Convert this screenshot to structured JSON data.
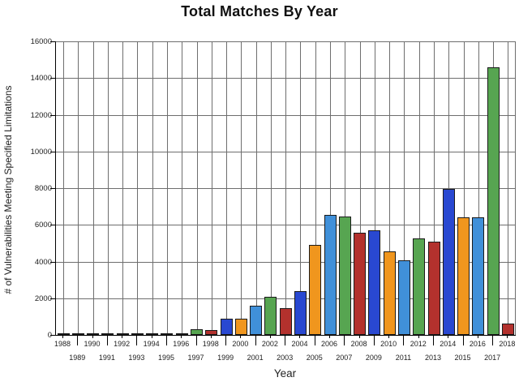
{
  "figure": {
    "title": "Total Matches By Year",
    "xlabel": "Year",
    "ylabel": "# of Vulnerabilities Meeting Specified Limitations"
  },
  "palette": {
    "red": "#b3312d",
    "blue": "#2948d1",
    "orange": "#f0961e",
    "lightblue": "#4090d9",
    "green": "#57a551"
  },
  "chart_data": {
    "type": "bar",
    "title": "Total Matches By Year",
    "xlabel": "Year",
    "ylabel": "# of Vulnerabilities Meeting Specified Limitations",
    "ylim": [
      0,
      16000
    ],
    "yticks": [
      0,
      2000,
      4000,
      6000,
      8000,
      10000,
      12000,
      14000,
      16000
    ],
    "grid": "both",
    "legend": "none",
    "categories": [
      1988,
      1989,
      1990,
      1991,
      1992,
      1993,
      1994,
      1995,
      1996,
      1997,
      1998,
      1999,
      2000,
      2001,
      2002,
      2003,
      2004,
      2005,
      2006,
      2007,
      2008,
      2009,
      2010,
      2011,
      2012,
      2013,
      2014,
      2015,
      2016,
      2017,
      2018
    ],
    "values": [
      3,
      3,
      12,
      15,
      13,
      13,
      25,
      25,
      90,
      310,
      260,
      880,
      900,
      1600,
      2090,
      1450,
      2400,
      4900,
      6560,
      6450,
      5570,
      5680,
      4550,
      4070,
      5250,
      5100,
      7950,
      6430,
      6400,
      14600,
      640
    ],
    "color_cycle": [
      "red",
      "blue",
      "orange",
      "lightblue",
      "green"
    ],
    "bar_color_by_year_note": "color = color_cycle[(year - 1988) % 5]"
  }
}
